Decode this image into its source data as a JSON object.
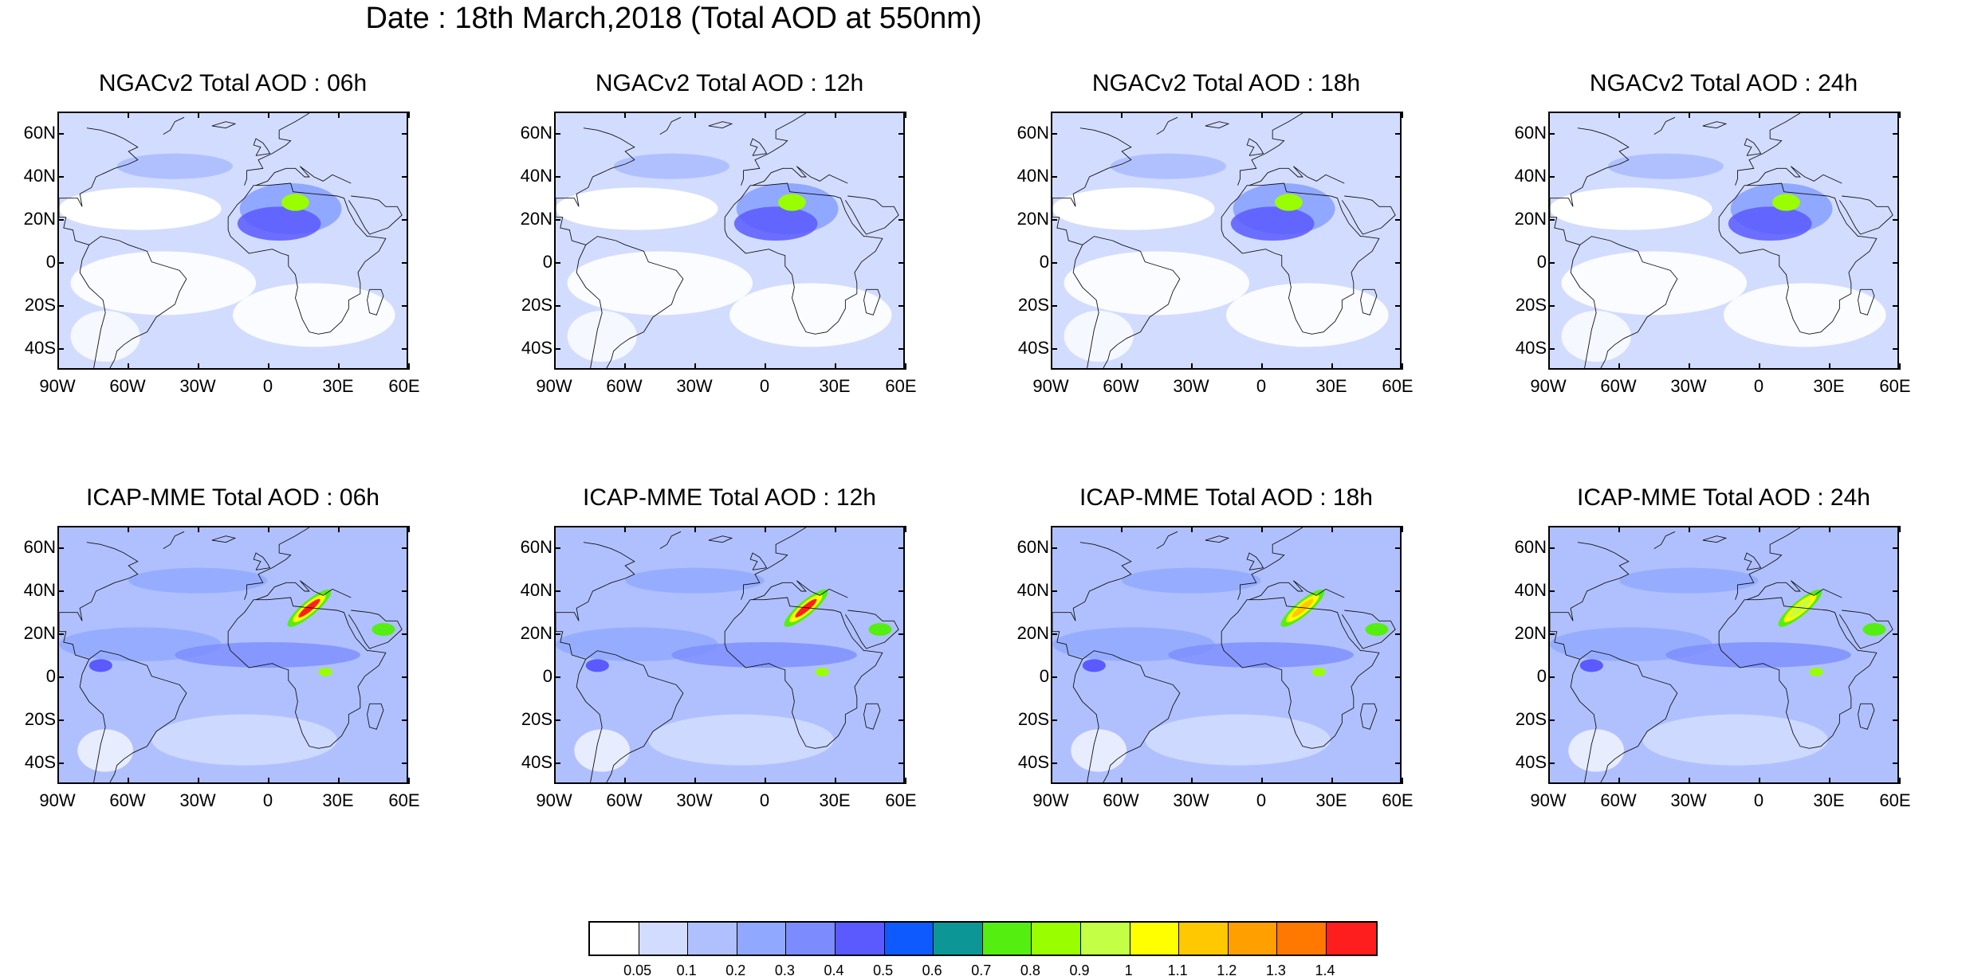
{
  "figure": {
    "title": "Date : 18th March,2018 (Total AOD at 550nm)"
  },
  "panels": [
    {
      "title": "NGACv2 Total AOD : 06h",
      "model": "NGACv2",
      "hour": "06h",
      "dust_level": 0.8,
      "dust_extent": "small"
    },
    {
      "title": "NGACv2 Total AOD : 12h",
      "model": "NGACv2",
      "hour": "12h",
      "dust_level": 0.8,
      "dust_extent": "small"
    },
    {
      "title": "NGACv2 Total AOD : 18h",
      "model": "NGACv2",
      "hour": "18h",
      "dust_level": 0.8,
      "dust_extent": "small"
    },
    {
      "title": "NGACv2 Total AOD : 24h",
      "model": "NGACv2",
      "hour": "24h",
      "dust_level": 0.8,
      "dust_extent": "small"
    },
    {
      "title": "ICAP-MME Total AOD : 06h",
      "model": "ICAP-MME",
      "hour": "06h",
      "dust_level": 1.4,
      "dust_extent": "plume"
    },
    {
      "title": "ICAP-MME Total AOD : 12h",
      "model": "ICAP-MME",
      "hour": "12h",
      "dust_level": 1.4,
      "dust_extent": "plume"
    },
    {
      "title": "ICAP-MME Total AOD : 18h",
      "model": "ICAP-MME",
      "hour": "18h",
      "dust_level": 1.1,
      "dust_extent": "plume"
    },
    {
      "title": "ICAP-MME Total AOD : 24h",
      "model": "ICAP-MME",
      "hour": "24h",
      "dust_level": 0.9,
      "dust_extent": "plume"
    }
  ],
  "axes": {
    "lat_ticks": [
      "60N",
      "40N",
      "20N",
      "0",
      "20S",
      "40S"
    ],
    "lat_values": [
      60,
      40,
      20,
      0,
      -20,
      -40
    ],
    "lat_range": [
      -50,
      70
    ],
    "lon_ticks": [
      "90W",
      "60W",
      "30W",
      "0",
      "30E",
      "60E"
    ],
    "lon_values": [
      -90,
      -60,
      -30,
      0,
      30,
      60
    ],
    "lon_range": [
      -90,
      60
    ]
  },
  "colorbar": {
    "labels": [
      "0.05",
      "0.1",
      "0.2",
      "0.3",
      "0.4",
      "0.5",
      "0.6",
      "0.7",
      "0.8",
      "0.9",
      "1",
      "1.1",
      "1.2",
      "1.3",
      "1.4"
    ],
    "colors": [
      "#ffffff",
      "#d2dcff",
      "#b0c0ff",
      "#90a8ff",
      "#7c8cff",
      "#5a5aff",
      "#0f5aff",
      "#0d9696",
      "#55ee11",
      "#99ff00",
      "#c3ff44",
      "#ffff00",
      "#ffc800",
      "#ffa000",
      "#ff7800",
      "#ff1e1e"
    ]
  }
}
